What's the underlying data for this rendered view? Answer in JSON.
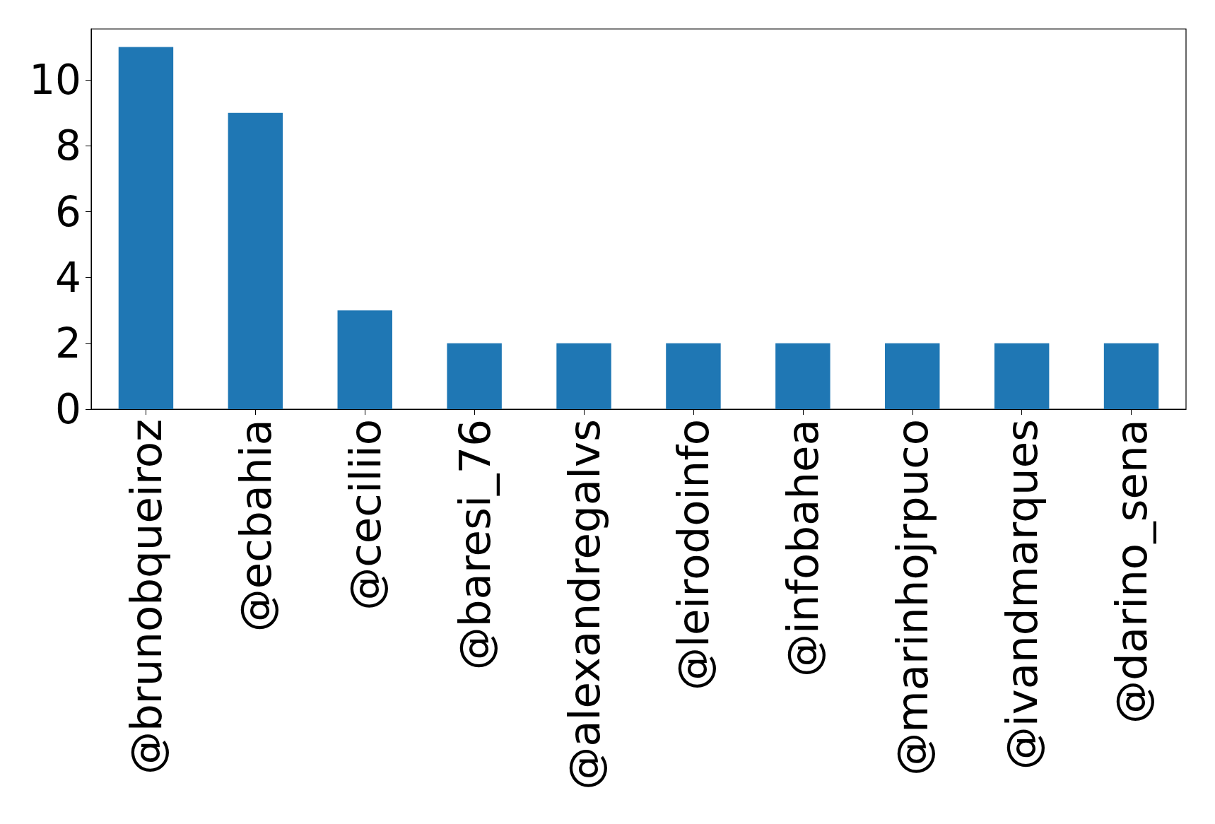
{
  "chart_data": {
    "type": "bar",
    "categories": [
      "@brunobqueiroz",
      "@ecbahia",
      "@ceciliio",
      "@baresi_76",
      "@alexandregalvs",
      "@leirodoinfo",
      "@infobahea",
      "@marinhojrpuco",
      "@ivandmarques",
      "@darino_sena"
    ],
    "values": [
      11,
      9,
      3,
      2,
      2,
      2,
      2,
      2,
      2,
      2
    ],
    "color": "#1f77b4",
    "ylim": [
      0,
      11.55
    ],
    "yticks": [
      0,
      2,
      4,
      6,
      8,
      10
    ],
    "grid": false
  }
}
